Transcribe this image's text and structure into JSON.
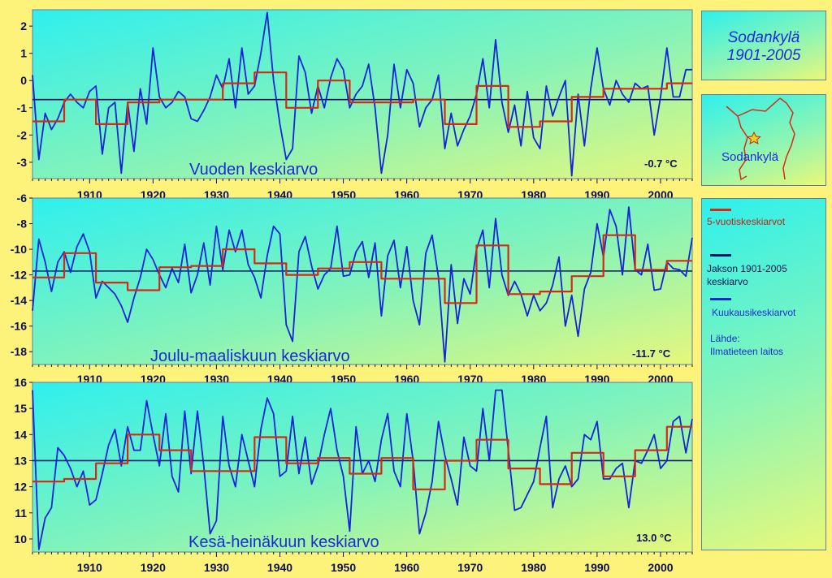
{
  "colors": {
    "background": "#fdf27a",
    "monthly_line": "#1424d6",
    "five_year_line": "#d42a14",
    "period_mean_line": "#101060",
    "text_blue": "#1a2bd6",
    "text_dark": "#0b1050"
  },
  "title_box": {
    "line1": "Sodankylä",
    "line2": "1901-2005"
  },
  "map_box": {
    "label": "Sodankylä",
    "icon": "star-icon"
  },
  "legend": {
    "five_year": "5-vuotiskeskiarvot",
    "period_mean_line1": "Jakson  1901-2005",
    "period_mean_line2": "keskiarvo",
    "monthly": "Kuukausikeskiarvot",
    "source_line1": "Lähde:",
    "source_line2": "Ilmatieteen laitos"
  },
  "chart_data": [
    {
      "type": "line",
      "title": "Vuoden keskiarvo",
      "mean_label": "-0.7 °C",
      "x_ticks": [
        "1910",
        "1920",
        "1930",
        "1940",
        "1950",
        "1960",
        "1970",
        "1980",
        "1990",
        "2000"
      ],
      "y_ticks": [
        "2",
        "1",
        "0",
        "-1",
        "-2",
        "-3"
      ],
      "ylim": [
        -3.6,
        2.6
      ],
      "xlim": [
        1901,
        2005
      ],
      "mean": -0.7,
      "series": [
        {
          "name": "Kuukausikeskiarvot",
          "x": [
            1901,
            1902,
            1903,
            1904,
            1905,
            1906,
            1907,
            1908,
            1909,
            1910,
            1911,
            1912,
            1913,
            1914,
            1915,
            1916,
            1917,
            1918,
            1919,
            1920,
            1921,
            1922,
            1923,
            1924,
            1925,
            1926,
            1927,
            1928,
            1929,
            1930,
            1931,
            1932,
            1933,
            1934,
            1935,
            1936,
            1937,
            1938,
            1939,
            1940,
            1941,
            1942,
            1943,
            1944,
            1945,
            1946,
            1947,
            1948,
            1949,
            1950,
            1951,
            1952,
            1953,
            1954,
            1955,
            1956,
            1957,
            1958,
            1959,
            1960,
            1961,
            1962,
            1963,
            1964,
            1965,
            1966,
            1967,
            1968,
            1969,
            1970,
            1971,
            1972,
            1973,
            1974,
            1975,
            1976,
            1977,
            1978,
            1979,
            1980,
            1981,
            1982,
            1983,
            1984,
            1985,
            1986,
            1987,
            1988,
            1989,
            1990,
            1991,
            1992,
            1993,
            1994,
            1995,
            1996,
            1997,
            1998,
            1999,
            2000,
            2001,
            2002,
            2003,
            2004,
            2005
          ],
          "values": [
            0.2,
            -2.9,
            -1.2,
            -1.8,
            -1.4,
            -0.8,
            -0.5,
            -0.8,
            -1.0,
            -0.4,
            -0.2,
            -2.7,
            -1.0,
            -0.8,
            -3.4,
            -0.8,
            -2.6,
            -0.3,
            -1.6,
            1.2,
            -0.6,
            -1.0,
            -0.8,
            -0.4,
            -0.6,
            -1.4,
            -1.5,
            -1.1,
            -0.6,
            0.2,
            -0.3,
            0.8,
            -1.0,
            1.2,
            -0.5,
            -0.2,
            1.0,
            2.5,
            0.0,
            -1.6,
            -2.9,
            -2.5,
            0.9,
            0.3,
            -1.2,
            -0.2,
            -1.0,
            0.1,
            0.8,
            0.4,
            -1.0,
            -0.5,
            -0.2,
            0.6,
            -1.0,
            -3.4,
            -2.0,
            0.6,
            -1.0,
            0.4,
            -0.1,
            -1.7,
            -1.0,
            -0.7,
            0.2,
            -2.5,
            -1.2,
            -2.4,
            -1.8,
            -1.3,
            -0.5,
            0.8,
            -1.0,
            1.5,
            -0.8,
            -1.9,
            -0.9,
            -2.4,
            -0.4,
            -2.1,
            -2.5,
            -0.2,
            -1.3,
            -0.6,
            0.0,
            -3.5,
            -0.5,
            -2.4,
            -0.3,
            1.2,
            -0.3,
            -0.9,
            0.0,
            -0.5,
            -0.8,
            -0.1,
            -0.3,
            -0.2,
            -2.0,
            -0.6,
            1.2,
            -0.6,
            -0.6,
            0.4,
            0.4
          ]
        },
        {
          "name": "5-vuotiskeskiarvot",
          "x": [
            1901,
            1906,
            1906,
            1911,
            1911,
            1916,
            1916,
            1921,
            1921,
            1926,
            1926,
            1931,
            1931,
            1936,
            1936,
            1941,
            1941,
            1946,
            1946,
            1951,
            1951,
            1956,
            1956,
            1961,
            1961,
            1966,
            1966,
            1971,
            1971,
            1976,
            1976,
            1981,
            1981,
            1986,
            1986,
            1991,
            1991,
            1996,
            1996,
            2001,
            2001,
            2005
          ],
          "values": [
            -1.5,
            -1.5,
            -0.7,
            -0.7,
            -1.6,
            -1.6,
            -0.8,
            -0.8,
            -0.7,
            -0.7,
            -0.7,
            -0.7,
            -0.1,
            -0.1,
            0.3,
            0.3,
            -1.0,
            -1.0,
            0.0,
            0.0,
            -0.8,
            -0.8,
            -0.8,
            -0.8,
            -0.7,
            -0.7,
            -1.6,
            -1.6,
            -0.2,
            -0.2,
            -1.7,
            -1.7,
            -1.5,
            -1.5,
            -0.6,
            -0.6,
            -0.3,
            -0.3,
            -0.3,
            -0.3,
            -0.1,
            -0.1
          ]
        }
      ]
    },
    {
      "type": "line",
      "title": "Joulu-maaliskuun keskiarvo",
      "mean_label": "-11.7 °C",
      "x_ticks": [
        "1910",
        "1920",
        "1930",
        "1940",
        "1950",
        "1960",
        "1970",
        "1980",
        "1990",
        "2000"
      ],
      "y_ticks": [
        "-6",
        "-8",
        "-10",
        "-12",
        "-14",
        "-16",
        "-18"
      ],
      "ylim": [
        -19,
        -6
      ],
      "xlim": [
        1901,
        2005
      ],
      "mean": -11.7,
      "series": [
        {
          "name": "Kuukausikeskiarvot",
          "x": [
            1901,
            1902,
            1903,
            1904,
            1905,
            1906,
            1907,
            1908,
            1909,
            1910,
            1911,
            1912,
            1913,
            1914,
            1915,
            1916,
            1917,
            1918,
            1919,
            1920,
            1921,
            1922,
            1923,
            1924,
            1925,
            1926,
            1927,
            1928,
            1929,
            1930,
            1931,
            1932,
            1933,
            1934,
            1935,
            1936,
            1937,
            1938,
            1939,
            1940,
            1941,
            1942,
            1943,
            1944,
            1945,
            1946,
            1947,
            1948,
            1949,
            1950,
            1951,
            1952,
            1953,
            1954,
            1955,
            1956,
            1957,
            1958,
            1959,
            1960,
            1961,
            1962,
            1963,
            1964,
            1965,
            1966,
            1967,
            1968,
            1969,
            1970,
            1971,
            1972,
            1973,
            1974,
            1975,
            1976,
            1977,
            1978,
            1979,
            1980,
            1981,
            1982,
            1983,
            1984,
            1985,
            1986,
            1987,
            1988,
            1989,
            1990,
            1991,
            1992,
            1993,
            1994,
            1995,
            1996,
            1997,
            1998,
            1999,
            2000,
            2001,
            2002,
            2003,
            2004,
            2005
          ],
          "values": [
            -14.8,
            -9.2,
            -11.0,
            -13.3,
            -11.0,
            -10.2,
            -11.8,
            -9.8,
            -8.8,
            -10.2,
            -13.8,
            -12.5,
            -13.0,
            -13.5,
            -14.4,
            -15.7,
            -13.8,
            -12.2,
            -10.0,
            -10.8,
            -12.0,
            -13.0,
            -11.5,
            -12.6,
            -9.6,
            -13.4,
            -12.0,
            -9.5,
            -12.8,
            -8.2,
            -11.6,
            -8.5,
            -10.2,
            -8.5,
            -11.2,
            -12.2,
            -13.8,
            -10.5,
            -8.2,
            -8.8,
            -15.9,
            -17.2,
            -10.2,
            -9.0,
            -11.3,
            -13.1,
            -12.0,
            -11.5,
            -8.2,
            -12.1,
            -12.0,
            -10.2,
            -9.4,
            -12.2,
            -9.5,
            -15.2,
            -10.5,
            -9.3,
            -13.0,
            -9.8,
            -14.0,
            -15.9,
            -10.3,
            -8.9,
            -12.2,
            -18.8,
            -11.2,
            -15.8,
            -12.3,
            -13.5,
            -10.0,
            -8.5,
            -13.0,
            -7.6,
            -12.0,
            -13.6,
            -12.5,
            -13.5,
            -15.2,
            -13.6,
            -14.8,
            -14.2,
            -12.8,
            -10.6,
            -16.0,
            -13.6,
            -16.8,
            -13.1,
            -11.8,
            -8.0,
            -10.6,
            -6.9,
            -8.2,
            -12.0,
            -6.7,
            -11.6,
            -12.0,
            -9.6,
            -13.2,
            -13.1,
            -11.0,
            -11.5,
            -11.6,
            -12.1,
            -9.1
          ]
        },
        {
          "name": "5-vuotiskeskiarvot",
          "x": [
            1901,
            1906,
            1906,
            1911,
            1911,
            1916,
            1916,
            1921,
            1921,
            1926,
            1926,
            1931,
            1931,
            1936,
            1936,
            1941,
            1941,
            1946,
            1946,
            1951,
            1951,
            1956,
            1956,
            1961,
            1961,
            1966,
            1966,
            1971,
            1971,
            1976,
            1976,
            1981,
            1981,
            1986,
            1986,
            1991,
            1991,
            1996,
            1996,
            2001,
            2001,
            2005
          ],
          "values": [
            -12.2,
            -12.2,
            -10.3,
            -10.3,
            -12.6,
            -12.6,
            -13.2,
            -13.2,
            -11.4,
            -11.4,
            -11.3,
            -11.3,
            -10.0,
            -10.0,
            -11.1,
            -11.1,
            -12.0,
            -12.0,
            -11.5,
            -11.5,
            -11.0,
            -11.0,
            -12.3,
            -12.3,
            -12.3,
            -12.3,
            -14.2,
            -14.2,
            -9.7,
            -9.7,
            -13.5,
            -13.5,
            -13.3,
            -13.3,
            -12.1,
            -12.1,
            -8.9,
            -8.9,
            -11.6,
            -11.6,
            -10.9,
            -10.9
          ]
        }
      ]
    },
    {
      "type": "line",
      "title": "Kesä-heinäkuun keskiarvo",
      "mean_label": "13.0 °C",
      "x_ticks": [
        "1910",
        "1920",
        "1930",
        "1940",
        "1950",
        "1960",
        "1970",
        "1980",
        "1990",
        "2000"
      ],
      "y_ticks": [
        "16",
        "15",
        "14",
        "13",
        "12",
        "11",
        "10"
      ],
      "ylim": [
        9.5,
        16
      ],
      "xlim": [
        1901,
        2005
      ],
      "mean": 13.0,
      "series": [
        {
          "name": "Kuukausikeskiarvot",
          "x": [
            1901,
            1902,
            1903,
            1904,
            1905,
            1906,
            1907,
            1908,
            1909,
            1910,
            1911,
            1912,
            1913,
            1914,
            1915,
            1916,
            1917,
            1918,
            1919,
            1920,
            1921,
            1922,
            1923,
            1924,
            1925,
            1926,
            1927,
            1928,
            1929,
            1930,
            1931,
            1932,
            1933,
            1934,
            1935,
            1936,
            1937,
            1938,
            1939,
            1940,
            1941,
            1942,
            1943,
            1944,
            1945,
            1946,
            1947,
            1948,
            1949,
            1950,
            1951,
            1952,
            1953,
            1954,
            1955,
            1956,
            1957,
            1958,
            1959,
            1960,
            1961,
            1962,
            1963,
            1964,
            1965,
            1966,
            1967,
            1968,
            1969,
            1970,
            1971,
            1972,
            1973,
            1974,
            1975,
            1976,
            1977,
            1978,
            1979,
            1980,
            1981,
            1982,
            1983,
            1984,
            1985,
            1986,
            1987,
            1988,
            1989,
            1990,
            1991,
            1992,
            1993,
            1994,
            1995,
            1996,
            1997,
            1998,
            1999,
            2000,
            2001,
            2002,
            2003,
            2004,
            2005
          ],
          "values": [
            15.7,
            9.6,
            10.8,
            11.2,
            13.5,
            13.2,
            12.7,
            12.0,
            12.6,
            11.3,
            11.5,
            12.5,
            13.6,
            14.2,
            12.8,
            14.3,
            13.4,
            13.4,
            15.3,
            14.0,
            12.8,
            14.8,
            12.4,
            11.8,
            14.9,
            12.5,
            14.9,
            12.8,
            10.2,
            10.7,
            14.7,
            12.8,
            12.0,
            14.0,
            13.0,
            12.0,
            14.2,
            15.4,
            14.8,
            12.4,
            12.6,
            14.7,
            12.5,
            13.9,
            12.1,
            12.8,
            14.0,
            15.0,
            13.4,
            12.4,
            10.3,
            14.3,
            12.5,
            13.0,
            12.2,
            13.8,
            14.8,
            12.6,
            12.0,
            14.8,
            13.0,
            10.2,
            11.0,
            12.2,
            14.5,
            13.2,
            12.3,
            11.3,
            13.9,
            12.8,
            12.6,
            15.0,
            13.0,
            15.7,
            15.7,
            13.4,
            11.1,
            11.2,
            11.7,
            12.2,
            13.5,
            14.7,
            11.2,
            12.3,
            12.8,
            12.0,
            12.3,
            14.0,
            13.8,
            14.5,
            12.3,
            12.3,
            12.7,
            12.9,
            11.2,
            13.0,
            12.9,
            13.4,
            14.0,
            12.7,
            13.0,
            14.5,
            14.7,
            13.3,
            14.6
          ]
        },
        {
          "name": "5-vuotiskeskiarvot",
          "x": [
            1901,
            1906,
            1906,
            1911,
            1911,
            1916,
            1916,
            1921,
            1921,
            1926,
            1926,
            1931,
            1931,
            1936,
            1936,
            1941,
            1941,
            1946,
            1946,
            1951,
            1951,
            1956,
            1956,
            1961,
            1961,
            1966,
            1966,
            1971,
            1971,
            1976,
            1976,
            1981,
            1981,
            1986,
            1986,
            1991,
            1991,
            1996,
            1996,
            2001,
            2001,
            2005
          ],
          "values": [
            12.2,
            12.2,
            12.3,
            12.3,
            12.9,
            12.9,
            14.0,
            14.0,
            13.4,
            13.4,
            12.6,
            12.6,
            12.6,
            12.6,
            13.9,
            13.9,
            12.9,
            12.9,
            13.1,
            13.1,
            12.5,
            12.5,
            13.1,
            13.1,
            11.9,
            11.9,
            13.0,
            13.0,
            13.8,
            13.8,
            12.7,
            12.7,
            12.1,
            12.1,
            13.3,
            13.3,
            12.4,
            12.4,
            13.4,
            13.4,
            14.3,
            14.3
          ]
        }
      ]
    }
  ]
}
